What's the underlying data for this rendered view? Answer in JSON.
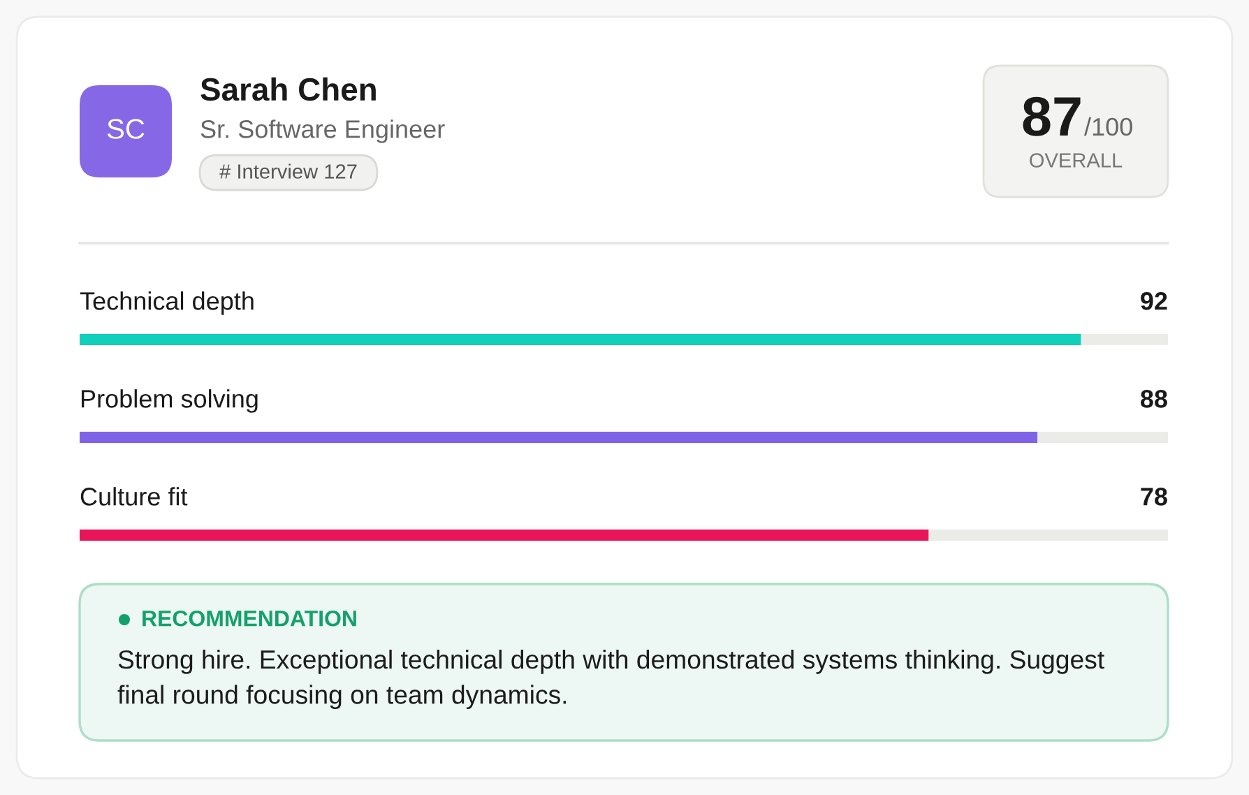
{
  "chart_data": [
    {
      "type": "other",
      "title": "Sarah Chen",
      "subtitle": "Sr. Software Engineer",
      "annotations": [
        "SC",
        "# Interview 127",
        "87",
        "/100",
        "OVERALL"
      ]
    },
    {
      "type": "bar",
      "orientation": "horizontal",
      "categories": [
        "Technical depth",
        "Problem solving",
        "Culture fit"
      ],
      "values": [
        92,
        88,
        78
      ],
      "colors": [
        "#10d0bc",
        "#7e63e6",
        "#e8155a"
      ],
      "xlim": [
        0,
        100
      ],
      "data_labels": true,
      "tick_labels": false
    },
    {
      "type": "other",
      "title": "RECOMMENDATION",
      "annotations": [
        "Strong hire. Exceptional technical depth with demonstrated systems thinking. Suggest\nfinal round focusing on team dynamics."
      ]
    }
  ]
}
